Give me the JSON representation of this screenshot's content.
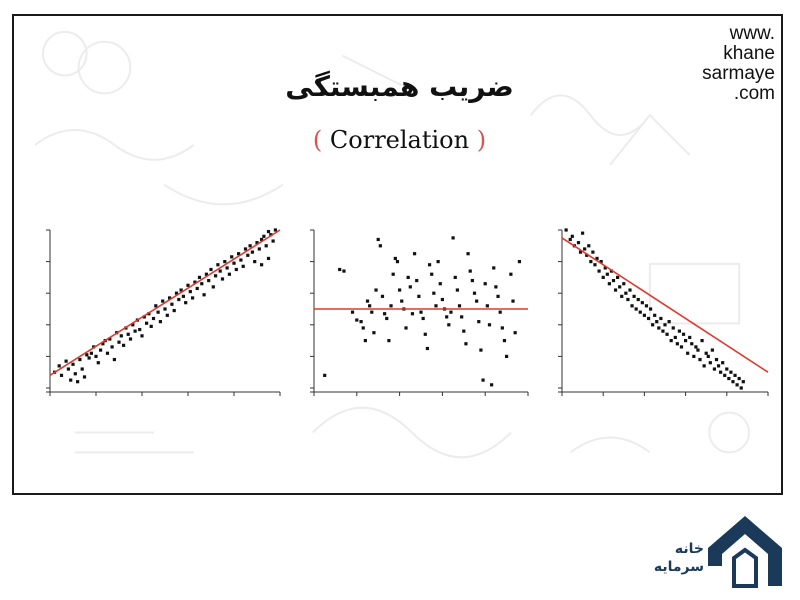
{
  "header": {
    "title": "ضریب همبستگی",
    "subtitle": "Correlation",
    "paren_open": "(",
    "paren_close": ")",
    "site_lines": [
      "www.",
      "khane",
      "sarmaye",
      ".com"
    ]
  },
  "logo": {
    "text_line1": "خانه",
    "text_line2": "سرمایه",
    "color": "#1b3a5a"
  },
  "colors": {
    "fit_line": "#e03a2f",
    "points": "#111111",
    "paren": "#d9534f"
  },
  "chart_data": [
    {
      "type": "scatter",
      "title": "",
      "xlabel": "",
      "ylabel": "",
      "xlim": [
        0,
        100
      ],
      "ylim": [
        0,
        100
      ],
      "trend": "positive",
      "fit_line": [
        [
          0,
          8
        ],
        [
          100,
          100
        ]
      ],
      "points": [
        [
          2,
          10
        ],
        [
          4,
          14
        ],
        [
          5,
          8
        ],
        [
          7,
          17
        ],
        [
          8,
          12
        ],
        [
          9,
          5
        ],
        [
          10,
          15
        ],
        [
          11,
          9
        ],
        [
          12,
          4
        ],
        [
          13,
          18
        ],
        [
          14,
          12
        ],
        [
          15,
          7
        ],
        [
          16,
          21
        ],
        [
          17,
          19
        ],
        [
          18,
          22
        ],
        [
          19,
          26
        ],
        [
          20,
          20
        ],
        [
          21,
          16
        ],
        [
          22,
          24
        ],
        [
          23,
          28
        ],
        [
          24,
          30
        ],
        [
          25,
          22
        ],
        [
          26,
          31
        ],
        [
          27,
          26
        ],
        [
          28,
          18
        ],
        [
          29,
          35
        ],
        [
          30,
          29
        ],
        [
          31,
          33
        ],
        [
          32,
          27
        ],
        [
          33,
          38
        ],
        [
          34,
          34
        ],
        [
          35,
          31
        ],
        [
          36,
          40
        ],
        [
          37,
          36
        ],
        [
          38,
          43
        ],
        [
          39,
          37
        ],
        [
          40,
          33
        ],
        [
          41,
          45
        ],
        [
          42,
          41
        ],
        [
          43,
          47
        ],
        [
          44,
          39
        ],
        [
          45,
          44
        ],
        [
          46,
          52
        ],
        [
          47,
          48
        ],
        [
          48,
          42
        ],
        [
          49,
          55
        ],
        [
          50,
          50
        ],
        [
          51,
          46
        ],
        [
          52,
          57
        ],
        [
          53,
          53
        ],
        [
          54,
          49
        ],
        [
          55,
          60
        ],
        [
          56,
          56
        ],
        [
          57,
          62
        ],
        [
          58,
          58
        ],
        [
          59,
          54
        ],
        [
          60,
          65
        ],
        [
          61,
          61
        ],
        [
          62,
          57
        ],
        [
          63,
          67
        ],
        [
          64,
          63
        ],
        [
          65,
          70
        ],
        [
          66,
          66
        ],
        [
          67,
          59
        ],
        [
          68,
          72
        ],
        [
          69,
          68
        ],
        [
          70,
          75
        ],
        [
          71,
          64
        ],
        [
          72,
          71
        ],
        [
          73,
          78
        ],
        [
          74,
          74
        ],
        [
          75,
          69
        ],
        [
          76,
          80
        ],
        [
          77,
          76
        ],
        [
          78,
          72
        ],
        [
          79,
          83
        ],
        [
          80,
          79
        ],
        [
          81,
          75
        ],
        [
          82,
          85
        ],
        [
          83,
          81
        ],
        [
          84,
          77
        ],
        [
          85,
          88
        ],
        [
          86,
          84
        ],
        [
          87,
          90
        ],
        [
          88,
          86
        ],
        [
          89,
          80
        ],
        [
          90,
          92
        ],
        [
          91,
          88
        ],
        [
          92,
          94
        ],
        [
          93,
          96
        ],
        [
          94,
          90
        ],
        [
          95,
          99
        ],
        [
          96,
          97
        ],
        [
          97,
          93
        ],
        [
          98,
          100
        ],
        [
          95,
          82
        ],
        [
          92,
          78
        ]
      ]
    },
    {
      "type": "scatter",
      "title": "",
      "xlabel": "",
      "ylabel": "",
      "xlim": [
        0,
        100
      ],
      "ylim": [
        0,
        100
      ],
      "trend": "none",
      "fit_line": [
        [
          0,
          50
        ],
        [
          100,
          50
        ]
      ],
      "points": [
        [
          5,
          8
        ],
        [
          12,
          75
        ],
        [
          14,
          74
        ],
        [
          18,
          48
        ],
        [
          20,
          43
        ],
        [
          22,
          42
        ],
        [
          23,
          38
        ],
        [
          24,
          30
        ],
        [
          25,
          55
        ],
        [
          26,
          52
        ],
        [
          27,
          48
        ],
        [
          28,
          35
        ],
        [
          29,
          62
        ],
        [
          30,
          94
        ],
        [
          31,
          90
        ],
        [
          32,
          58
        ],
        [
          33,
          47
        ],
        [
          34,
          44
        ],
        [
          35,
          30
        ],
        [
          36,
          52
        ],
        [
          37,
          72
        ],
        [
          38,
          82
        ],
        [
          39,
          80
        ],
        [
          40,
          62
        ],
        [
          41,
          55
        ],
        [
          42,
          50
        ],
        [
          43,
          38
        ],
        [
          44,
          70
        ],
        [
          45,
          64
        ],
        [
          46,
          47
        ],
        [
          47,
          85
        ],
        [
          48,
          68
        ],
        [
          49,
          58
        ],
        [
          50,
          48
        ],
        [
          51,
          44
        ],
        [
          52,
          34
        ],
        [
          53,
          25
        ],
        [
          54,
          78
        ],
        [
          55,
          72
        ],
        [
          56,
          60
        ],
        [
          57,
          52
        ],
        [
          58,
          80
        ],
        [
          59,
          66
        ],
        [
          60,
          56
        ],
        [
          61,
          50
        ],
        [
          62,
          45
        ],
        [
          63,
          40
        ],
        [
          64,
          48
        ],
        [
          65,
          95
        ],
        [
          66,
          70
        ],
        [
          67,
          62
        ],
        [
          68,
          52
        ],
        [
          69,
          45
        ],
        [
          70,
          36
        ],
        [
          71,
          28
        ],
        [
          72,
          85
        ],
        [
          73,
          74
        ],
        [
          74,
          68
        ],
        [
          75,
          60
        ],
        [
          76,
          55
        ],
        [
          77,
          42
        ],
        [
          78,
          24
        ],
        [
          79,
          5
        ],
        [
          80,
          66
        ],
        [
          81,
          52
        ],
        [
          82,
          40
        ],
        [
          83,
          2
        ],
        [
          84,
          76
        ],
        [
          85,
          64
        ],
        [
          86,
          58
        ],
        [
          87,
          48
        ],
        [
          88,
          38
        ],
        [
          89,
          30
        ],
        [
          90,
          20
        ],
        [
          92,
          72
        ],
        [
          93,
          55
        ],
        [
          94,
          35
        ],
        [
          96,
          80
        ]
      ]
    },
    {
      "type": "scatter",
      "title": "",
      "xlabel": "",
      "ylabel": "",
      "xlim": [
        0,
        100
      ],
      "ylim": [
        0,
        100
      ],
      "trend": "negative",
      "fit_line": [
        [
          0,
          95
        ],
        [
          100,
          10
        ]
      ],
      "points": [
        [
          2,
          100
        ],
        [
          4,
          94
        ],
        [
          5,
          96
        ],
        [
          6,
          90
        ],
        [
          8,
          92
        ],
        [
          9,
          86
        ],
        [
          10,
          98
        ],
        [
          11,
          88
        ],
        [
          12,
          84
        ],
        [
          13,
          90
        ],
        [
          14,
          80
        ],
        [
          15,
          86
        ],
        [
          16,
          78
        ],
        [
          17,
          82
        ],
        [
          18,
          74
        ],
        [
          19,
          80
        ],
        [
          20,
          70
        ],
        [
          21,
          76
        ],
        [
          22,
          72
        ],
        [
          23,
          66
        ],
        [
          24,
          74
        ],
        [
          25,
          68
        ],
        [
          26,
          62
        ],
        [
          27,
          70
        ],
        [
          28,
          64
        ],
        [
          29,
          58
        ],
        [
          30,
          66
        ],
        [
          31,
          60
        ],
        [
          32,
          56
        ],
        [
          33,
          62
        ],
        [
          34,
          52
        ],
        [
          35,
          58
        ],
        [
          36,
          50
        ],
        [
          37,
          56
        ],
        [
          38,
          48
        ],
        [
          39,
          54
        ],
        [
          40,
          46
        ],
        [
          41,
          52
        ],
        [
          42,
          44
        ],
        [
          43,
          50
        ],
        [
          44,
          40
        ],
        [
          45,
          46
        ],
        [
          46,
          42
        ],
        [
          47,
          38
        ],
        [
          48,
          44
        ],
        [
          49,
          36
        ],
        [
          50,
          40
        ],
        [
          51,
          34
        ],
        [
          52,
          42
        ],
        [
          53,
          30
        ],
        [
          54,
          38
        ],
        [
          55,
          32
        ],
        [
          56,
          28
        ],
        [
          57,
          36
        ],
        [
          58,
          26
        ],
        [
          59,
          34
        ],
        [
          60,
          30
        ],
        [
          61,
          22
        ],
        [
          62,
          32
        ],
        [
          63,
          28
        ],
        [
          64,
          20
        ],
        [
          65,
          26
        ],
        [
          66,
          24
        ],
        [
          67,
          18
        ],
        [
          68,
          30
        ],
        [
          69,
          14
        ],
        [
          70,
          22
        ],
        [
          71,
          20
        ],
        [
          72,
          16
        ],
        [
          73,
          24
        ],
        [
          74,
          12
        ],
        [
          75,
          18
        ],
        [
          76,
          14
        ],
        [
          77,
          10
        ],
        [
          78,
          16
        ],
        [
          79,
          8
        ],
        [
          80,
          12
        ],
        [
          81,
          6
        ],
        [
          82,
          10
        ],
        [
          83,
          4
        ],
        [
          84,
          8
        ],
        [
          85,
          2
        ],
        [
          86,
          6
        ],
        [
          87,
          0
        ],
        [
          88,
          4
        ]
      ]
    }
  ]
}
